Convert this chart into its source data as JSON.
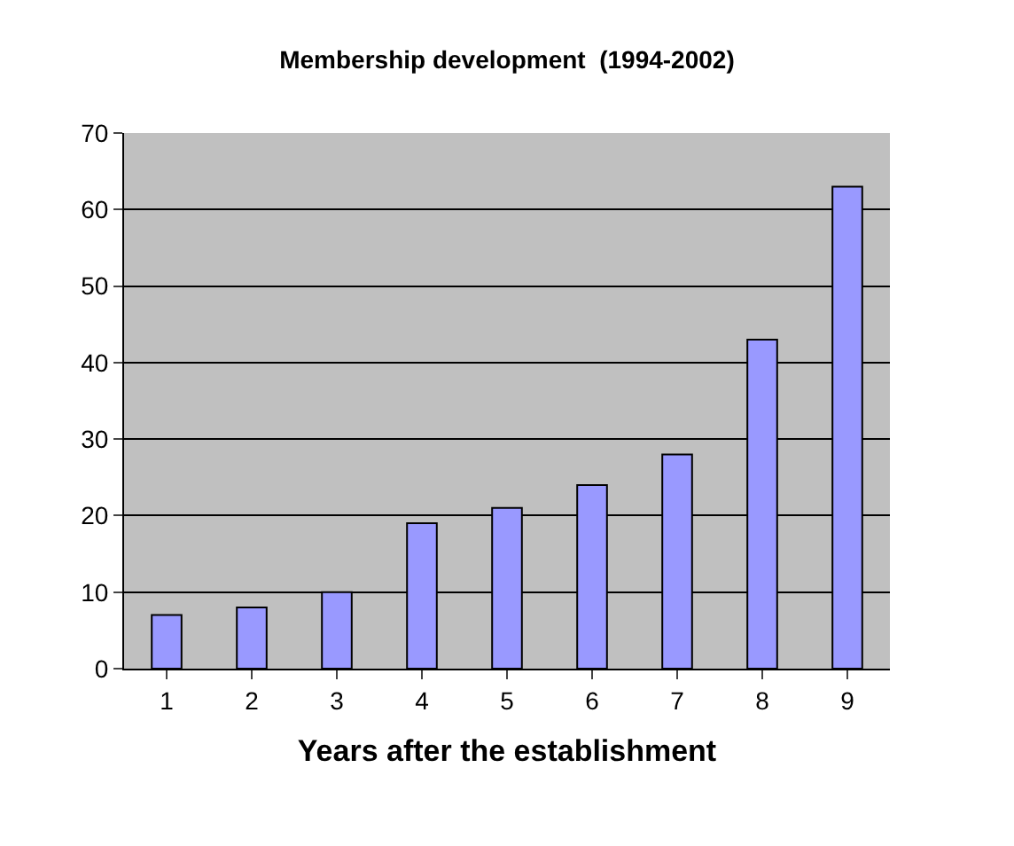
{
  "chart_data": {
    "type": "bar",
    "title": "Membership development  (1994-2002)",
    "xlabel": "Years after the establishment",
    "categories": [
      "1",
      "2",
      "3",
      "4",
      "5",
      "6",
      "7",
      "8",
      "9"
    ],
    "values": [
      7,
      8,
      10,
      19,
      21,
      24,
      28,
      43,
      63
    ],
    "color": "#9999ff",
    "ylim": [
      0,
      70
    ],
    "yticks": [
      0,
      10,
      20,
      30,
      40,
      50,
      60,
      70
    ],
    "grid": "y"
  }
}
